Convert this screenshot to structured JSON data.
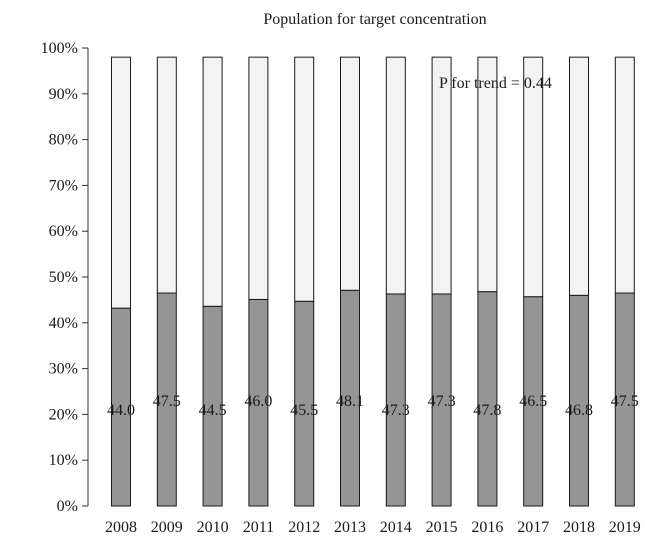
{
  "chart_data": {
    "type": "bar",
    "stacked": true,
    "title": "Population for target concentration",
    "xlabel": "",
    "ylabel": "",
    "categories": [
      "2008",
      "2009",
      "2010",
      "2011",
      "2012",
      "2013",
      "2014",
      "2015",
      "2016",
      "2017",
      "2018",
      "2019"
    ],
    "series": [
      {
        "values": [
          43.2,
          46.5,
          43.6,
          45.1,
          44.7,
          47.1,
          46.3,
          46.3,
          46.8,
          45.7,
          46.0,
          46.5
        ],
        "labels": [
          "44.0",
          "47.5",
          "44.5",
          "46.0",
          "45.5",
          "48.1",
          "47.3",
          "47.3",
          "47.8",
          "46.5",
          "46.8",
          "47.5"
        ],
        "color": "#959595"
      },
      {
        "values": [
          54.8,
          51.5,
          54.4,
          52.9,
          53.3,
          50.9,
          51.7,
          51.7,
          51.2,
          52.3,
          52.0,
          51.5
        ],
        "color": "#f3f3f3"
      }
    ],
    "y_ticks": [
      "0%",
      "10%",
      "20%",
      "30%",
      "40%",
      "50%",
      "60%",
      "70%",
      "80%",
      "90%",
      "100%"
    ],
    "ylim": [
      0,
      100
    ],
    "annotation": "P for trend = 0.44",
    "grid": false,
    "legend": "none"
  }
}
